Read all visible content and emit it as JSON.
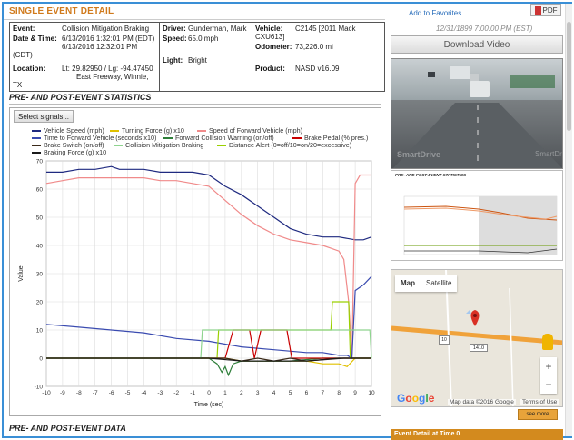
{
  "header": {
    "title": "SINGLE EVENT DETAIL",
    "favorites_label": "Add to Favorites",
    "pdf_label": "PDF",
    "timestamp": "12/31/1899 7:00:00 PM (EST)",
    "download_label": "Download Video"
  },
  "info": {
    "event_label": "Event:",
    "event_value": "Collision Mitigation Braking",
    "datetime_label": "Date & Time:",
    "datetime_line1": "6/13/2016 1:32:01 PM (EDT)",
    "datetime_line2": "6/13/2016 12:32:01 PM (CDT)",
    "location_label": "Location:",
    "location_coords": "Lt: 29.82950 / Lg: -94.47450",
    "location_place": "East Freeway, Winnie, TX",
    "driver_label": "Driver:",
    "driver_value": "Gunderman, Mark",
    "speed_label": "Speed:",
    "speed_value": "65.0 mph",
    "light_label": "Light:",
    "light_value": "Bright",
    "vehicle_label": "Vehicle:",
    "vehicle_value": "C2145 [2011 Mack CXU613]",
    "odometer_label": "Odometer:",
    "odometer_value": "73,226.0 mi",
    "product_label": "Product:",
    "product_value": "NASD v16.09"
  },
  "stats": {
    "heading": "PRE- AND POST-EVENT STATISTICS",
    "select_label": "Select signals...",
    "legend": [
      {
        "label": "Vehicle Speed (mph)",
        "color": "#1f2a80"
      },
      {
        "label": "Turning Force (g) x10",
        "color": "#e0c000"
      },
      {
        "label": "Speed of Forward Vehicle (mph)",
        "color": "#f08a8a"
      },
      {
        "label": "Time to Forward Vehicle (seconds x10)",
        "color": "#3a4bb0"
      },
      {
        "label": "Forward Collision Warning (on/off)",
        "color": "#2f7f3a"
      },
      {
        "label": "Brake Pedal (% pres.)",
        "color": "#c80000"
      },
      {
        "label": "Brake Switch (on/off)",
        "color": "#3b2a1a"
      },
      {
        "label": "Collision Mitigation Braking",
        "color": "#8fd48f"
      },
      {
        "label": "Distance Alert (0=off/10=on/20=excessive)",
        "color": "#9ad000"
      },
      {
        "label": "Braking Force (g) x10",
        "color": "#1a1a1a"
      }
    ]
  },
  "data_heading": "PRE- AND POST-EVENT DATA",
  "video": {
    "watermark": "SmartDrive",
    "watermark2": "SmartDrive"
  },
  "thumb_heading": "PRE- AND POST-EVENT STATISTICS",
  "map": {
    "tab_map": "Map",
    "tab_satellite": "Satellite",
    "shield_label": "10",
    "highway_label": "1410",
    "google": [
      "G",
      "o",
      "o",
      "g",
      "l",
      "e"
    ],
    "map_data": "Map data ©2016 Google",
    "terms": "Terms of Use",
    "zoom_in": "+",
    "zoom_out": "−"
  },
  "see_more": "see more",
  "event_detail_bar": "Event Detail at Time 0",
  "chart_data": {
    "type": "line",
    "xlabel": "Time (sec)",
    "ylabel": "Value",
    "xlim": [
      -10,
      10
    ],
    "ylim": [
      -10,
      70
    ],
    "xticks": [
      -10,
      -9,
      -8,
      -7,
      -6,
      -5,
      -4,
      -3,
      -2,
      -1,
      0,
      1,
      2,
      3,
      4,
      5,
      6,
      7,
      8,
      9,
      10
    ],
    "yticks": [
      -10,
      0,
      10,
      20,
      30,
      40,
      50,
      60,
      70
    ],
    "series": [
      {
        "name": "Vehicle Speed (mph)",
        "color": "#1f2a80",
        "x": [
          -10,
          -9,
          -8,
          -7,
          -6,
          -5.5,
          -5,
          -4,
          -3,
          -2,
          -1,
          0,
          1,
          2,
          3,
          4,
          5,
          6,
          7,
          8,
          9,
          9.5,
          10
        ],
        "y": [
          66,
          66,
          67,
          67,
          68,
          67,
          67,
          67,
          66,
          66,
          66,
          65,
          61,
          58,
          54,
          50,
          46,
          44,
          43,
          43,
          42,
          42,
          43
        ]
      },
      {
        "name": "Speed of Forward Vehicle (mph)",
        "color": "#f08a8a",
        "x": [
          -10,
          -9,
          -8,
          -7,
          -6,
          -5,
          -4,
          -3,
          -2,
          -1,
          0,
          1,
          2,
          3,
          4,
          5,
          6,
          7,
          7.5,
          8,
          8.3,
          8.6,
          8.8,
          9,
          9.3,
          9.6,
          10
        ],
        "y": [
          62,
          63,
          64,
          64,
          64,
          64,
          64,
          63,
          63,
          62,
          61,
          56,
          51,
          47,
          44,
          42,
          41,
          40,
          39,
          38,
          35,
          20,
          0,
          62,
          65,
          65,
          65
        ]
      },
      {
        "name": "Time to Forward Vehicle (seconds x10)",
        "color": "#3a4bb0",
        "x": [
          -10,
          -8,
          -6,
          -4,
          -2,
          0,
          2,
          4,
          6,
          7,
          8,
          8.5,
          8.8,
          9,
          9.5,
          10
        ],
        "y": [
          12,
          11,
          10,
          9,
          7,
          6,
          4,
          3,
          2,
          2,
          1,
          1,
          0,
          24,
          26,
          29
        ]
      },
      {
        "name": "Turning Force (g) x10",
        "color": "#e0c000",
        "x": [
          -10,
          -6,
          -2,
          0,
          1,
          2,
          3,
          4,
          5,
          6,
          7,
          8,
          8.5,
          9,
          10
        ],
        "y": [
          0,
          0,
          0,
          0,
          0,
          -1,
          -1,
          -1,
          -1,
          -1,
          -2,
          -2,
          -3,
          0,
          0
        ]
      },
      {
        "name": "Forward Collision Warning (on/off)",
        "color": "#2f7f3a",
        "x": [
          -10,
          -6,
          -2,
          0,
          0.5,
          0.8,
          1,
          1.2,
          1.5,
          2,
          2.5,
          3,
          5,
          7,
          8,
          9,
          10
        ],
        "y": [
          0,
          0,
          0,
          0,
          -2,
          -5,
          -3,
          -6,
          -2,
          -1,
          -1,
          -1,
          -1,
          0,
          0,
          0,
          0
        ]
      },
      {
        "name": "Brake Pedal (% pres.)",
        "color": "#c80000",
        "x": [
          -10,
          1,
          1.5,
          2.5,
          2.8,
          3.2,
          4.8,
          5.1,
          6,
          10
        ],
        "y": [
          0,
          0,
          10,
          10,
          0,
          10,
          10,
          0,
          0,
          0
        ]
      },
      {
        "name": "Distance Alert (0=off/10=on/20=excessive)",
        "color": "#9ad000",
        "x": [
          -10,
          0.5,
          0.6,
          7.5,
          7.6,
          8.6,
          8.7,
          9,
          10
        ],
        "y": [
          0,
          0,
          10,
          10,
          20,
          20,
          0,
          0,
          0
        ]
      },
      {
        "name": "Collision Mitigation Braking",
        "color": "#8fd48f",
        "x": [
          -10,
          -0.5,
          -0.4,
          9.9,
          10
        ],
        "y": [
          0,
          0,
          10,
          10,
          0
        ]
      },
      {
        "name": "Brake Switch (on/off)",
        "color": "#3b2a1a",
        "x": [
          -10,
          0.5,
          1,
          2,
          3,
          4,
          5,
          6,
          8.3,
          8.5,
          10
        ],
        "y": [
          0,
          0,
          0,
          -1,
          0,
          -1,
          0,
          -1,
          0,
          0,
          0
        ]
      },
      {
        "name": "Braking Force (g) x10",
        "color": "#1a1a1a",
        "x": [
          -10,
          -5,
          0,
          2,
          4,
          6,
          8,
          10
        ],
        "y": [
          0,
          0,
          0,
          -1,
          -1,
          -1,
          0,
          0
        ]
      }
    ]
  }
}
